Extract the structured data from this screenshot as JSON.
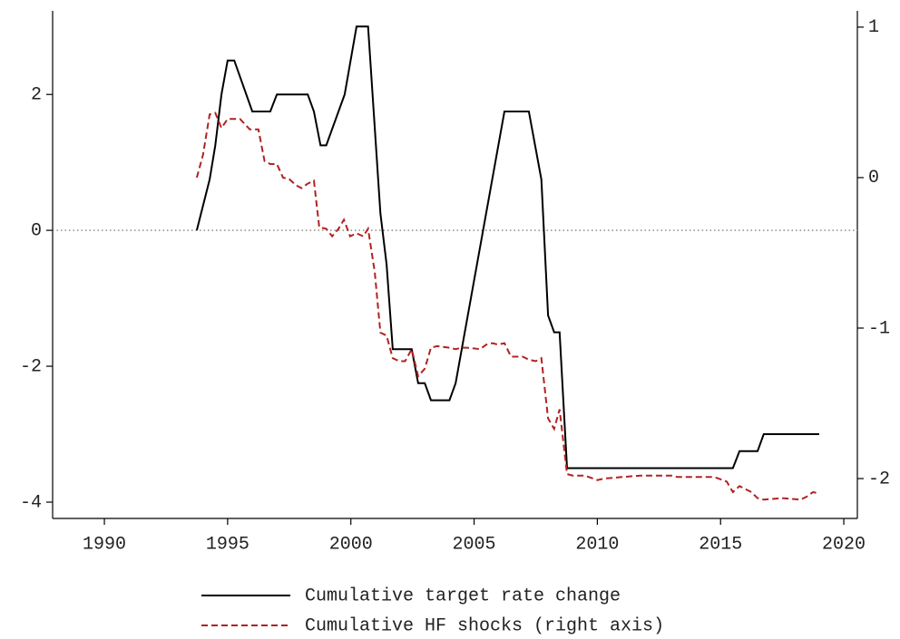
{
  "chart_data": {
    "type": "line",
    "xlim": [
      1987.9,
      2020.55
    ],
    "xticks": [
      1990,
      1995,
      2000,
      2005,
      2010,
      2015,
      2020
    ],
    "ylim": [
      -4.24,
      3.23
    ],
    "yticks": [
      -4,
      -2,
      0,
      2
    ],
    "y2lim": [
      -2.265,
      1.108
    ],
    "y2ticks": [
      -2,
      -1,
      0,
      1
    ],
    "zero_line": true,
    "legend": "bottom",
    "series": [
      {
        "name": "Cumulative target rate change",
        "color": "#000000",
        "dash": false,
        "x": [
          1993.75,
          1994.27,
          1994.5,
          1994.75,
          1995.0,
          1995.27,
          1996.0,
          1996.73,
          1997.0,
          1998.25,
          1998.5,
          1998.77,
          1999.0,
          1999.75,
          2000.23,
          2000.7,
          2001.2,
          2001.45,
          2001.7,
          2002.47,
          2002.73,
          2003.0,
          2003.25,
          2004.0,
          2004.25,
          2006.23,
          2007.22,
          2007.73,
          2008.0,
          2008.25,
          2008.47,
          2008.77,
          2015.5,
          2015.77,
          2016.5,
          2016.75,
          2019.0
        ],
        "values": [
          0,
          0.75,
          1.25,
          2,
          2.5,
          2.5,
          1.75,
          1.75,
          2,
          2,
          1.75,
          1.25,
          1.25,
          2,
          3,
          3,
          0.25,
          -0.5,
          -1.75,
          -1.75,
          -2.25,
          -2.25,
          -2.5,
          -2.5,
          -2.25,
          1.75,
          1.75,
          0.75,
          -1.25,
          -1.5,
          -1.5,
          -3.5,
          -3.5,
          -3.25,
          -3.25,
          -3,
          -3
        ]
      },
      {
        "name": "Cumulative HF shocks (right axis)",
        "color": "#b22222",
        "dash": true,
        "axis": "y2",
        "x": [
          1993.75,
          1994.0,
          1994.27,
          1994.5,
          1994.75,
          1995.0,
          1995.5,
          1995.9,
          1996.25,
          1996.5,
          1996.73,
          1997.0,
          1997.25,
          1997.5,
          1997.77,
          1998.0,
          1998.25,
          1998.5,
          1998.72,
          1999.0,
          1999.24,
          1999.5,
          1999.72,
          1999.97,
          2000.23,
          2000.5,
          2000.7,
          2000.97,
          2001.2,
          2001.45,
          2001.7,
          2001.96,
          2002.2,
          2002.47,
          2002.73,
          2003.0,
          2003.25,
          2003.5,
          2004.0,
          2004.25,
          2004.5,
          2004.72,
          2005.24,
          2005.5,
          2005.75,
          2005.97,
          2006.23,
          2006.5,
          2006.97,
          2007.22,
          2007.5,
          2007.73,
          2008.0,
          2008.25,
          2008.47,
          2008.77,
          2009.0,
          2009.5,
          2010.0,
          2010.27,
          2011.0,
          2011.75,
          2012.5,
          2013.0,
          2013.25,
          2014.0,
          2014.75,
          2015.25,
          2015.5,
          2015.77,
          2016.25,
          2016.5,
          2016.75,
          2017.5,
          2018.25,
          2018.5,
          2018.75,
          2019.0
        ],
        "values": [
          0.0,
          0.15,
          0.42,
          0.43,
          0.33,
          0.39,
          0.39,
          0.32,
          0.32,
          0.11,
          0.09,
          0.09,
          0.0,
          -0.01,
          -0.05,
          -0.07,
          -0.04,
          -0.02,
          -0.33,
          -0.34,
          -0.39,
          -0.34,
          -0.28,
          -0.39,
          -0.37,
          -0.39,
          -0.34,
          -0.63,
          -1.03,
          -1.05,
          -1.2,
          -1.22,
          -1.22,
          -1.14,
          -1.32,
          -1.27,
          -1.13,
          -1.12,
          -1.13,
          -1.14,
          -1.13,
          -1.13,
          -1.14,
          -1.11,
          -1.1,
          -1.11,
          -1.1,
          -1.19,
          -1.19,
          -1.21,
          -1.22,
          -1.2,
          -1.6,
          -1.67,
          -1.54,
          -1.97,
          -1.98,
          -1.98,
          -2.01,
          -2.0,
          -1.99,
          -1.98,
          -1.98,
          -1.98,
          -1.99,
          -1.99,
          -1.99,
          -2.02,
          -2.09,
          -2.05,
          -2.09,
          -2.13,
          -2.14,
          -2.13,
          -2.14,
          -2.12,
          -2.09,
          -2.1
        ]
      }
    ]
  }
}
